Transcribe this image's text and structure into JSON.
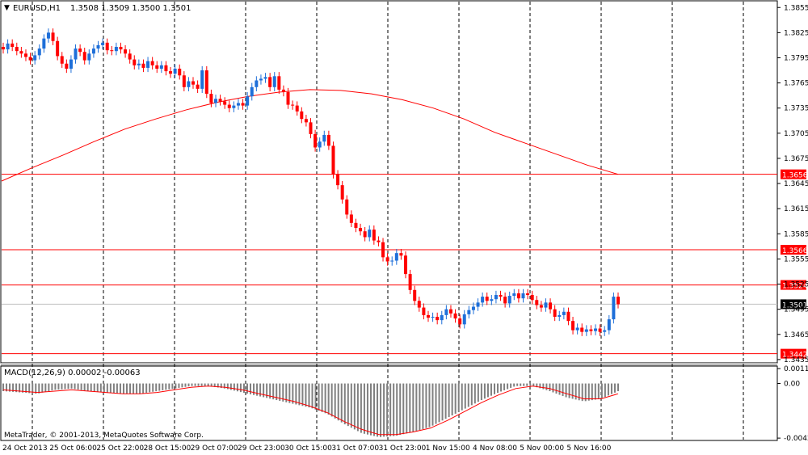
{
  "window": {
    "symbol_caption": "EURUSD,H1",
    "ohlc_caption": "1.3508 1.3509 1.3500 1.3501",
    "copyright": "MetaTrader, © 2001-2013, MetaQuotes Software Corp."
  },
  "colors": {
    "bull": "#1e6fd9",
    "bear": "#ff0000",
    "level": "#ff0000",
    "ma": "#ff0000",
    "grid": "#000000",
    "hist": "#808080",
    "signal": "#ff0000",
    "background": "#ffffff"
  },
  "chart_data": [
    {
      "type": "candlestick",
      "title": "EURUSD,H1",
      "y_ticks": [
        "1.3855",
        "1.3825",
        "1.3795",
        "1.3765",
        "1.3735",
        "1.3705",
        "1.3675",
        "1.3645",
        "1.3615",
        "1.3585",
        "1.3555",
        "1.3525",
        "1.3495",
        "1.3465",
        "1.3435"
      ],
      "ylim": [
        1.3432,
        1.3862
      ],
      "x_labels": [
        "24 Oct 2013",
        "25 Oct 06:00",
        "25 Oct 22:00",
        "28 Oct 15:00",
        "29 Oct 07:00",
        "29 Oct 23:00",
        "30 Oct 15:00",
        "31 Oct 07:00",
        "31 Oct 23:00",
        "1 Nov 15:00",
        "4 Nov 08:00",
        "5 Nov 00:00",
        "5 Nov 16:00"
      ],
      "price_levels": [
        {
          "label": "1.3656",
          "value": 1.3656
        },
        {
          "label": "1.3566",
          "value": 1.3566
        },
        {
          "label": "1.3524",
          "value": 1.3524
        },
        {
          "label": "1.3442",
          "value": 1.3442
        }
      ],
      "current_price": {
        "label": "1.3501",
        "value": 1.3501
      },
      "close_series": [
        1.3805,
        1.3812,
        1.3808,
        1.3803,
        1.38,
        1.3796,
        1.3792,
        1.3798,
        1.3806,
        1.3818,
        1.3825,
        1.3815,
        1.3797,
        1.3788,
        1.3782,
        1.3793,
        1.3806,
        1.3802,
        1.3792,
        1.38,
        1.3806,
        1.381,
        1.3813,
        1.3804,
        1.3803,
        1.3808,
        1.3805,
        1.38,
        1.3793,
        1.3786,
        1.3788,
        1.3783,
        1.3791,
        1.3786,
        1.3782,
        1.3786,
        1.3779,
        1.3776,
        1.3782,
        1.3774,
        1.376,
        1.3767,
        1.3763,
        1.3758,
        1.378,
        1.3752,
        1.3741,
        1.3746,
        1.3743,
        1.3739,
        1.3735,
        1.3738,
        1.3741,
        1.3738,
        1.3749,
        1.376,
        1.3768,
        1.377,
        1.3772,
        1.376,
        1.3773,
        1.3757,
        1.3754,
        1.3739,
        1.3738,
        1.3731,
        1.3722,
        1.3718,
        1.3704,
        1.3688,
        1.3695,
        1.3703,
        1.369,
        1.3656,
        1.3643,
        1.3626,
        1.3608,
        1.3598,
        1.3592,
        1.3588,
        1.3581,
        1.359,
        1.3577,
        1.3575,
        1.3557,
        1.3552,
        1.3553,
        1.3562,
        1.3559,
        1.3537,
        1.3518,
        1.3505,
        1.3497,
        1.3488,
        1.3485,
        1.3486,
        1.3482,
        1.3488,
        1.3495,
        1.349,
        1.3484,
        1.3477,
        1.3489,
        1.3494,
        1.3498,
        1.3503,
        1.351,
        1.3505,
        1.3507,
        1.3512,
        1.351,
        1.3502,
        1.3511,
        1.3514,
        1.3508,
        1.3514,
        1.3512,
        1.3506,
        1.35,
        1.3497,
        1.3503,
        1.3495,
        1.3486,
        1.3488,
        1.3492,
        1.3481,
        1.347,
        1.3473,
        1.3468,
        1.3471,
        1.3469,
        1.3472,
        1.3468,
        1.347,
        1.3483,
        1.351,
        1.3501
      ],
      "moving_average": [
        1.3648,
        1.3664,
        1.3679,
        1.3695,
        1.371,
        1.3722,
        1.3733,
        1.3742,
        1.3749,
        1.3754,
        1.3757,
        1.3756,
        1.3752,
        1.3745,
        1.3735,
        1.3722,
        1.3706,
        1.3693,
        1.368,
        1.3667,
        1.3656
      ]
    },
    {
      "type": "bar",
      "title": "MACD(12,26,9) 0.00002 -0.00063",
      "y_ticks": [
        "0.00117",
        "0.00",
        "-0.00428"
      ],
      "ylim": [
        -0.0044,
        0.0013
      ],
      "histogram_envelope": [
        -0.0006,
        -0.0007,
        -0.0008,
        -0.0005,
        -0.0004,
        -0.0006,
        -0.0007,
        -0.0008,
        -0.0008,
        -0.0006,
        -0.0004,
        -0.0002,
        -0.0002,
        -0.0004,
        -0.0007,
        -0.001,
        -0.0013,
        -0.0016,
        -0.0019,
        -0.0024,
        -0.0032,
        -0.0039,
        -0.0042,
        -0.0041,
        -0.0038,
        -0.0034,
        -0.0027,
        -0.002,
        -0.0013,
        -0.0007,
        -0.0002,
        -0.0002,
        -0.0006,
        -0.0011,
        -0.0014,
        -0.0012,
        -0.0006
      ],
      "signal_line": [
        -0.0005,
        -0.0006,
        -0.0007,
        -0.0006,
        -0.0005,
        -0.0006,
        -0.0007,
        -0.0008,
        -0.0008,
        -0.0007,
        -0.0005,
        -0.0003,
        -0.0002,
        -0.0003,
        -0.0005,
        -0.0008,
        -0.0011,
        -0.0014,
        -0.0018,
        -0.0023,
        -0.003,
        -0.0036,
        -0.004,
        -0.004,
        -0.0038,
        -0.0035,
        -0.0029,
        -0.0022,
        -0.0015,
        -0.0009,
        -0.0004,
        -0.0002,
        -0.0004,
        -0.0008,
        -0.0012,
        -0.0012,
        -0.0008
      ]
    }
  ]
}
